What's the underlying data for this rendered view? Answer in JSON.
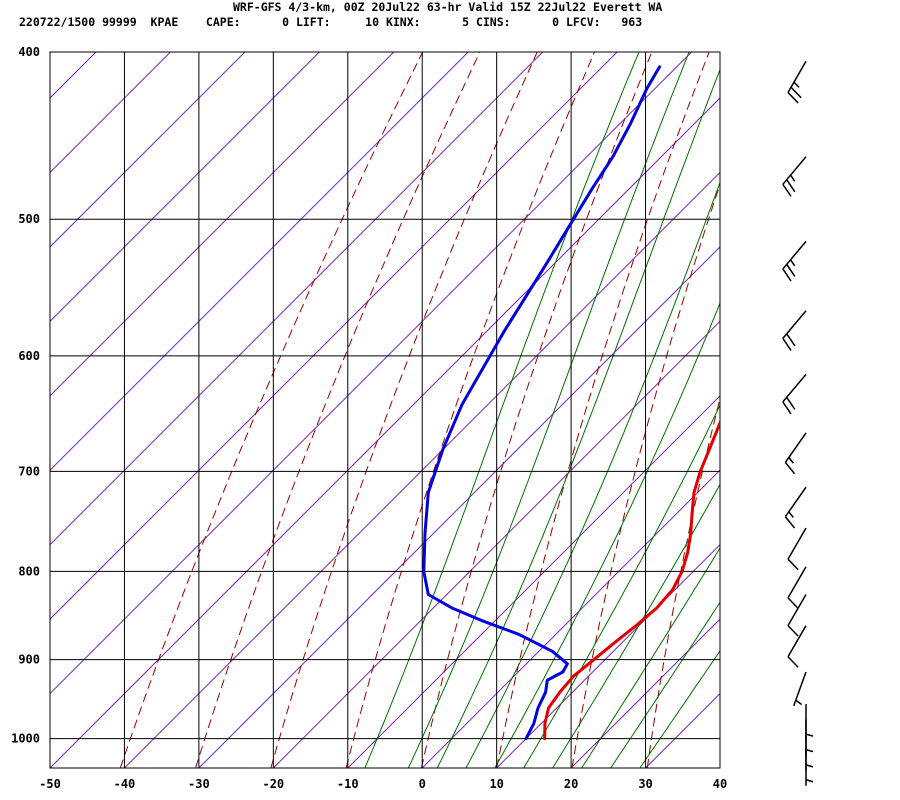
{
  "header": {
    "title": "WRF-GFS 4/3-km, 00Z 20Jul22 63-hr Valid 15Z 22Jul22 Everett WA",
    "info": "220722/1500 99999  KPAE    CAPE:      0 LIFT:     10 KINX:      5 CINS:      0 LFCV:   963"
  },
  "colors": {
    "temperature": "#e00000",
    "dewpoint": "#0000e0",
    "isotherm": "#7a22b8",
    "dry_adiabat": "#9b0000",
    "moist_adiabat": "#007000",
    "grid": "#000000"
  },
  "chart_data": {
    "type": "line",
    "title": "",
    "xlabel": "",
    "ylabel": "",
    "x_ticks": [
      -50,
      -40,
      -30,
      -20,
      -10,
      0,
      10,
      20,
      30,
      40
    ],
    "p_ticks": [
      400,
      500,
      600,
      700,
      800,
      900,
      1000
    ],
    "xlim": [
      -50,
      40
    ],
    "plim": [
      1040,
      400
    ],
    "grid": true,
    "series": [
      {
        "role": "temperature",
        "color": "#e00000",
        "points": [
          [
            1000,
            12.5
          ],
          [
            980,
            10.5
          ],
          [
            960,
            8.9
          ],
          [
            940,
            8.3
          ],
          [
            920,
            8.0
          ],
          [
            900,
            8.5
          ],
          [
            880,
            9.0
          ],
          [
            860,
            9.6
          ],
          [
            840,
            10.0
          ],
          [
            820,
            9.7
          ],
          [
            800,
            8.5
          ],
          [
            780,
            6.7
          ],
          [
            760,
            4.5
          ],
          [
            740,
            2.0
          ],
          [
            720,
            -0.5
          ],
          [
            700,
            -2.5
          ],
          [
            680,
            -4.2
          ],
          [
            660,
            -6.0
          ],
          [
            640,
            -7.9
          ],
          [
            620,
            -10.1
          ],
          [
            600,
            -12.3
          ],
          [
            580,
            -14.6
          ],
          [
            560,
            -16.8
          ],
          [
            540,
            -19.2
          ],
          [
            520,
            -21.5
          ],
          [
            500,
            -23.8
          ],
          [
            480,
            -26.1
          ],
          [
            460,
            -28.3
          ],
          [
            440,
            -30.8
          ],
          [
            420,
            -33.4
          ],
          [
            408,
            -35.0
          ]
        ]
      },
      {
        "role": "dewpoint",
        "color": "#0000e0",
        "points": [
          [
            1000,
            10.0
          ],
          [
            980,
            9.0
          ],
          [
            960,
            7.5
          ],
          [
            940,
            6.4
          ],
          [
            925,
            5.0
          ],
          [
            915,
            6.0
          ],
          [
            905,
            5.5
          ],
          [
            890,
            1.8
          ],
          [
            870,
            -5.0
          ],
          [
            855,
            -11.5
          ],
          [
            840,
            -17.5
          ],
          [
            825,
            -22.5
          ],
          [
            800,
            -26.2
          ],
          [
            760,
            -31.2
          ],
          [
            720,
            -36.2
          ],
          [
            680,
            -40.0
          ],
          [
            640,
            -43.5
          ],
          [
            580,
            -47.7
          ],
          [
            530,
            -51.1
          ],
          [
            500,
            -53.4
          ],
          [
            480,
            -55.0
          ],
          [
            460,
            -56.5
          ],
          [
            440,
            -58.6
          ],
          [
            420,
            -61.1
          ],
          [
            408,
            -62.3
          ]
        ]
      }
    ],
    "skew": "45-degree skew-T log-p diagram",
    "isotherm_range": [
      -140,
      60,
      10
    ],
    "dry_adiabat_theta_K": [
      230,
      240,
      250,
      260,
      270,
      280,
      290,
      300,
      310,
      320,
      330,
      340,
      350,
      360,
      370
    ],
    "moist_adiabat_theta_w_C": [
      -10,
      -4,
      0,
      4,
      8,
      12,
      16,
      20,
      24,
      28
    ],
    "wind_barbs": [
      {
        "p": 405,
        "dir": 210,
        "kt": 25
      },
      {
        "p": 460,
        "dir": 220,
        "kt": 25
      },
      {
        "p": 515,
        "dir": 220,
        "kt": 25
      },
      {
        "p": 565,
        "dir": 220,
        "kt": 20
      },
      {
        "p": 615,
        "dir": 220,
        "kt": 20
      },
      {
        "p": 665,
        "dir": 215,
        "kt": 15
      },
      {
        "p": 715,
        "dir": 215,
        "kt": 15
      },
      {
        "p": 755,
        "dir": 210,
        "kt": 10
      },
      {
        "p": 795,
        "dir": 210,
        "kt": 10
      },
      {
        "p": 825,
        "dir": 210,
        "kt": 10
      },
      {
        "p": 860,
        "dir": 210,
        "kt": 10
      },
      {
        "p": 915,
        "dir": 200,
        "kt": 5
      },
      {
        "p": 955,
        "dir": 180,
        "kt": 5
      },
      {
        "p": 975,
        "dir": 180,
        "kt": 5
      },
      {
        "p": 995,
        "dir": 180,
        "kt": 5
      },
      {
        "p": 1015,
        "dir": 180,
        "kt": 5
      }
    ]
  }
}
